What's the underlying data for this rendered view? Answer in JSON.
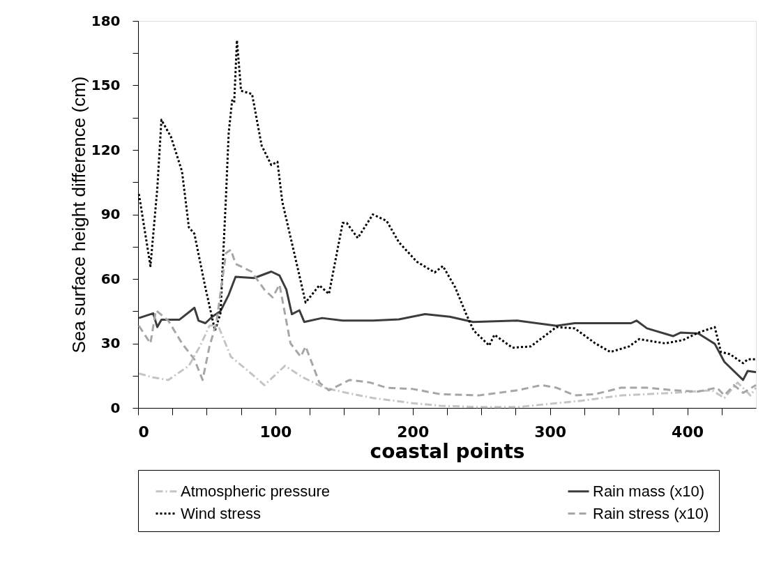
{
  "chart_data": {
    "type": "line",
    "xlabel": "coastal points",
    "ylabel": "Sea surface height difference (cm)",
    "xlim": [
      0,
      450
    ],
    "ylim": [
      0,
      180
    ],
    "xticks": [
      0,
      {
        "value": 25,
        "label": null
      },
      {
        "value": 50,
        "label": null
      },
      {
        "value": 75,
        "label": null
      },
      100,
      {
        "value": 125,
        "label": null
      },
      {
        "value": 150,
        "label": null
      },
      {
        "value": 175,
        "label": null
      },
      200,
      {
        "value": 225,
        "label": null
      },
      {
        "value": 250,
        "label": null
      },
      {
        "value": 275,
        "label": null
      },
      300,
      {
        "value": 325,
        "label": null
      },
      {
        "value": 350,
        "label": null
      },
      {
        "value": 375,
        "label": null
      },
      400,
      {
        "value": 425,
        "label": null
      }
    ],
    "yticks": [
      0,
      {
        "value": 15,
        "label": null
      },
      30,
      {
        "value": 45,
        "label": null
      },
      60,
      {
        "value": 75,
        "label": null
      },
      90,
      {
        "value": 105,
        "label": null
      },
      120,
      {
        "value": 135,
        "label": null
      },
      150,
      {
        "value": 165,
        "label": null
      },
      180
    ],
    "grid": false,
    "legend": "bottom",
    "marker": "none",
    "series": [
      {
        "name": "Atmospheric pressure",
        "color": "#c4c4c4",
        "line_style": "dashdot",
        "x": [
          0.6,
          11,
          22,
          37,
          45,
          52,
          58,
          67.6,
          79,
          92,
          107,
          120,
          135.5,
          152,
          171,
          200,
          220,
          248,
          276.6,
          304.7,
          323.6,
          351.8,
          389.6,
          418,
          427,
          436.6,
          446,
          450
        ],
        "values": [
          16,
          14.2,
          13,
          19.6,
          28.6,
          38.2,
          38.8,
          23.8,
          17.8,
          10.6,
          19.6,
          14.2,
          9.4,
          7,
          4.6,
          2.2,
          1,
          0.4,
          0.4,
          2.2,
          3.4,
          5.8,
          7,
          8.2,
          4.6,
          11.8,
          5.8,
          9.4
        ]
      },
      {
        "name": "Rain mass (x10)",
        "color": "#3c3c3c",
        "line_style": "solid",
        "x": [
          0.6,
          11,
          14,
          17,
          30,
          38,
          41,
          44,
          49,
          54,
          60,
          66,
          71,
          84.5,
          97,
          103,
          108,
          112,
          117.5,
          121,
          134,
          149,
          171,
          190,
          209,
          227,
          244,
          276,
          304.7,
          318,
          359,
          363,
          370.6,
          389.6,
          395,
          408,
          420,
          427,
          440.6,
          444,
          450
        ],
        "values": [
          41.8,
          44,
          37.6,
          41,
          41,
          45,
          46.6,
          40.6,
          39.4,
          42.4,
          45,
          52.6,
          61,
          60.4,
          63.4,
          61.6,
          55,
          43.6,
          45.4,
          40,
          41.8,
          40.6,
          40.6,
          41.2,
          43.6,
          42.4,
          40,
          40.6,
          38.2,
          39.4,
          39.4,
          40.6,
          37,
          33.4,
          35,
          34.6,
          29.8,
          21.4,
          13,
          17.2,
          16.6
        ]
      },
      {
        "name": "Wind stress",
        "color": "#000000",
        "line_style": "dotted",
        "x": [
          0.6,
          9,
          14,
          17,
          24,
          32,
          37,
          41,
          49,
          56,
          60,
          64,
          66,
          68.5,
          70,
          72,
          75,
          83,
          90,
          97,
          101.5,
          105,
          113,
          122,
          132,
          139,
          149,
          152,
          160,
          171,
          181,
          190,
          203,
          216,
          222,
          231,
          238.7,
          244.4,
          255.7,
          259.5,
          272.6,
          286,
          304.7,
          318,
          333,
          344,
          357.6,
          365,
          384,
          397,
          408,
          420,
          424.5,
          431,
          440.6,
          444,
          450
        ],
        "values": [
          99.5,
          66,
          102,
          134,
          126,
          110,
          84,
          81,
          56,
          36,
          44,
          98,
          128,
          143,
          142,
          171,
          147.5,
          146,
          122,
          113,
          114.5,
          96,
          74,
          49,
          57,
          53,
          86,
          86,
          79,
          90,
          87,
          77,
          68,
          63,
          66,
          56,
          44,
          36,
          29,
          34,
          28,
          28.6,
          37.6,
          37,
          30,
          26,
          28.6,
          32,
          30,
          31.6,
          35,
          37.6,
          26,
          25,
          20.8,
          22.6,
          22.6
        ]
      },
      {
        "name": "Rain stress (x10)",
        "color": "#a6a6a6",
        "line_style": "dashed",
        "x": [
          0.6,
          9,
          13,
          22,
          32,
          41,
          47,
          52,
          57,
          64,
          67.6,
          71,
          82.6,
          92,
          98,
          103,
          111,
          118.5,
          122,
          132,
          139,
          154,
          169,
          181,
          200,
          220,
          248,
          276.6,
          293.6,
          304.7,
          318,
          333,
          351.8,
          370.6,
          389.6,
          408,
          421.6,
          427,
          434,
          440.6,
          450
        ],
        "values": [
          38.2,
          30,
          45.4,
          40.6,
          30,
          22.6,
          13,
          28.6,
          39.4,
          72,
          73.6,
          67,
          63.4,
          55,
          51.4,
          57.4,
          30,
          23.8,
          28.6,
          11.8,
          8.2,
          13,
          11.8,
          9.4,
          8.8,
          6.4,
          5.8,
          8.2,
          10.6,
          9.4,
          5.8,
          6.4,
          9.4,
          9.4,
          8.2,
          7.6,
          9.4,
          5.8,
          10.6,
          7,
          10.6
        ]
      }
    ]
  }
}
